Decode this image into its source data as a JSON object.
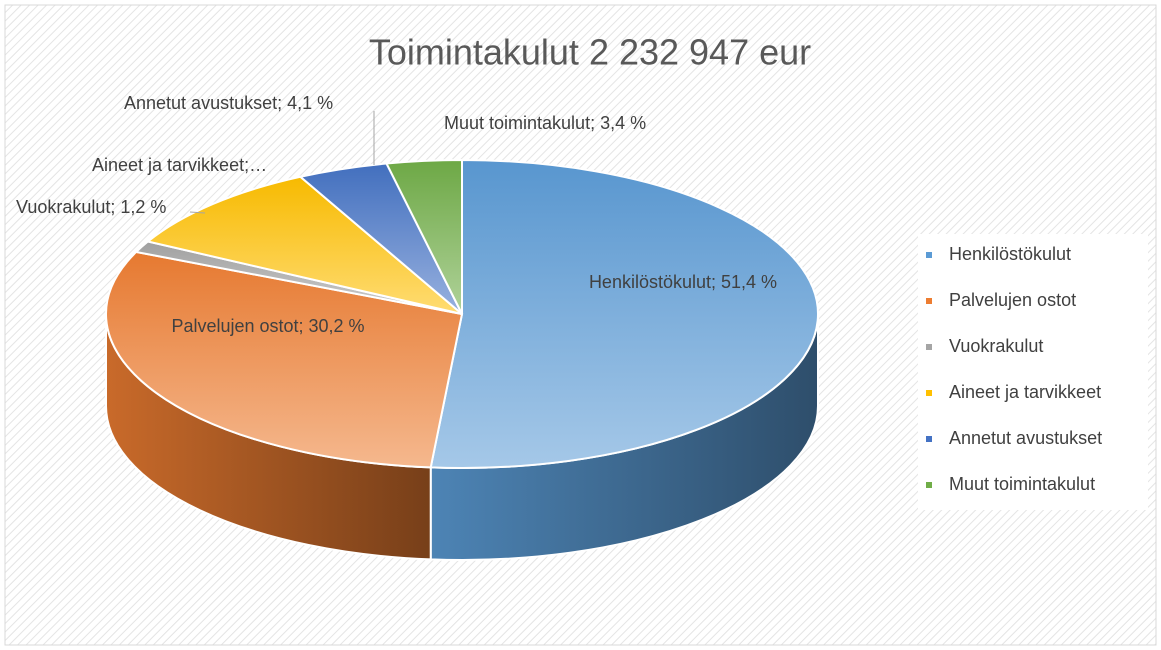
{
  "chart_data": {
    "type": "pie3d",
    "title": "Toimintakulut 2 232 947 eur",
    "categories": [
      "Henkilöstökulut",
      "Palvelujen ostot",
      "Vuokrakulut",
      "Aineet ja tarvikkeet",
      "Annetut avustukset",
      "Muut toimintakulut"
    ],
    "values": [
      51.4,
      30.2,
      1.2,
      9.7,
      4.1,
      3.4
    ],
    "value_labels": [
      "Henkilöstökulut; 51,4 %",
      "Palvelujen ostot; 30,2 %",
      "Vuokrakulut; 1,2 %",
      "Aineet ja tarvikkeet;…",
      "Annetut avustukset; 4,1 %",
      "Muut toimintakulut; 3,4 %"
    ],
    "colors": [
      "#5b9bd5",
      "#ed7d31",
      "#a5a5a5",
      "#ffc000",
      "#4472c4",
      "#70ad47"
    ],
    "legend": "right"
  }
}
